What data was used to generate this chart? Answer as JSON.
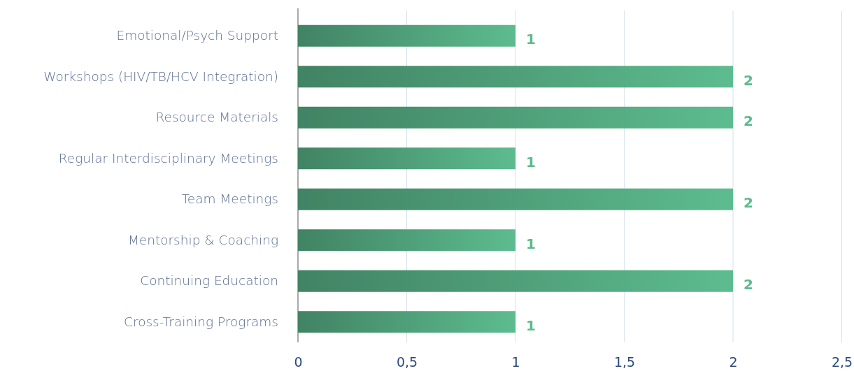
{
  "chart_data": {
    "type": "bar",
    "orientation": "horizontal",
    "categories": [
      "Emotional/Psych Support",
      "Workshops (HIV/TB/HCV Integration)",
      "Resource Materials",
      "Regular Interdisciplinary Meetings",
      "Team Meetings",
      "Mentorship & Coaching",
      "Continuing Education",
      "Cross-Training Programs"
    ],
    "series": [
      {
        "color": "#4fa07a",
        "values": [
          1,
          2,
          2,
          1,
          2,
          1,
          2,
          1
        ]
      }
    ],
    "xlim": [
      0,
      2.5
    ],
    "xticks": [
      0,
      {
        "value": 0.5,
        "label": "0,5"
      },
      1,
      {
        "value": 1.5,
        "label": "1,5"
      },
      2,
      {
        "value": 2.5,
        "label": "2,5"
      }
    ],
    "grid": "x",
    "data_labels": true
  }
}
